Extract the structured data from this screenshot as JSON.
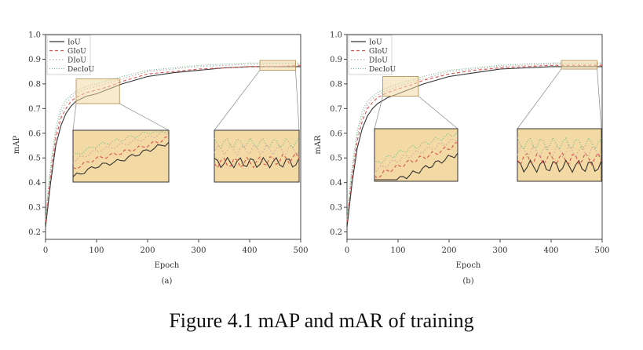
{
  "caption": "Figure 4.1 mAP and mAR of training",
  "colors": {
    "IoU": "#333333",
    "GIoU": "#d9534f",
    "DIoU": "#c8a6a6",
    "DecIoU": "#6dbb85",
    "zoom_fill": "#f3d9a4",
    "zoom_border": "#333333"
  },
  "chart_data": [
    {
      "type": "line",
      "panel_label": "(a)",
      "xlabel": "Epoch",
      "ylabel": "mAP",
      "xlim": [
        0,
        500
      ],
      "ylim": [
        0.17,
        1.0
      ],
      "xticks": [
        0,
        100,
        200,
        300,
        400,
        500
      ],
      "yticks": [
        0.2,
        0.3,
        0.4,
        0.5,
        0.6,
        0.7,
        0.8,
        0.9,
        1.0
      ],
      "grid": false,
      "legend": "top-left",
      "x": [
        0,
        10,
        20,
        30,
        40,
        50,
        60,
        80,
        100,
        125,
        150,
        200,
        250,
        300,
        350,
        400,
        450,
        500
      ],
      "series": [
        {
          "name": "IoU",
          "values": [
            0.22,
            0.4,
            0.55,
            0.63,
            0.68,
            0.71,
            0.73,
            0.75,
            0.76,
            0.78,
            0.8,
            0.83,
            0.845,
            0.855,
            0.865,
            0.87,
            0.87,
            0.87
          ]
        },
        {
          "name": "GIoU",
          "values": [
            0.24,
            0.43,
            0.58,
            0.66,
            0.7,
            0.73,
            0.745,
            0.765,
            0.775,
            0.79,
            0.81,
            0.84,
            0.85,
            0.86,
            0.865,
            0.87,
            0.87,
            0.875
          ]
        },
        {
          "name": "DIoU",
          "values": [
            0.25,
            0.45,
            0.6,
            0.68,
            0.72,
            0.745,
            0.76,
            0.78,
            0.79,
            0.805,
            0.82,
            0.85,
            0.86,
            0.87,
            0.875,
            0.88,
            0.88,
            0.88
          ]
        },
        {
          "name": "DecIoU",
          "values": [
            0.26,
            0.47,
            0.62,
            0.7,
            0.735,
            0.755,
            0.77,
            0.79,
            0.8,
            0.815,
            0.83,
            0.855,
            0.865,
            0.875,
            0.88,
            0.885,
            0.885,
            0.885
          ]
        }
      ],
      "zoom_boxes": [
        {
          "x": [
            60,
            145
          ],
          "y": [
            0.72,
            0.82
          ]
        },
        {
          "x": [
            420,
            490
          ],
          "y": [
            0.855,
            0.895
          ]
        }
      ]
    },
    {
      "type": "line",
      "panel_label": "(b)",
      "xlabel": "Epoch",
      "ylabel": "mAR",
      "xlim": [
        0,
        500
      ],
      "ylim": [
        0.17,
        1.0
      ],
      "xticks": [
        0,
        100,
        200,
        300,
        400,
        500
      ],
      "yticks": [
        0.2,
        0.3,
        0.4,
        0.5,
        0.6,
        0.7,
        0.8,
        0.9,
        1.0
      ],
      "grid": false,
      "legend": "top-left",
      "x": [
        0,
        10,
        20,
        30,
        40,
        50,
        60,
        80,
        100,
        125,
        150,
        200,
        250,
        300,
        350,
        400,
        450,
        500
      ],
      "series": [
        {
          "name": "IoU",
          "values": [
            0.22,
            0.4,
            0.54,
            0.62,
            0.67,
            0.7,
            0.72,
            0.745,
            0.76,
            0.78,
            0.8,
            0.83,
            0.845,
            0.86,
            0.865,
            0.87,
            0.87,
            0.87
          ]
        },
        {
          "name": "GIoU",
          "values": [
            0.24,
            0.43,
            0.57,
            0.65,
            0.7,
            0.725,
            0.745,
            0.765,
            0.78,
            0.795,
            0.815,
            0.84,
            0.855,
            0.865,
            0.87,
            0.875,
            0.875,
            0.875
          ]
        },
        {
          "name": "DIoU",
          "values": [
            0.25,
            0.45,
            0.59,
            0.67,
            0.715,
            0.74,
            0.755,
            0.775,
            0.79,
            0.805,
            0.82,
            0.85,
            0.86,
            0.87,
            0.875,
            0.88,
            0.88,
            0.88
          ]
        },
        {
          "name": "DecIoU",
          "values": [
            0.26,
            0.47,
            0.61,
            0.69,
            0.73,
            0.75,
            0.765,
            0.785,
            0.8,
            0.815,
            0.83,
            0.855,
            0.865,
            0.875,
            0.88,
            0.885,
            0.885,
            0.885
          ]
        }
      ],
      "zoom_boxes": [
        {
          "x": [
            70,
            140
          ],
          "y": [
            0.75,
            0.83
          ]
        },
        {
          "x": [
            420,
            490
          ],
          "y": [
            0.86,
            0.895
          ]
        }
      ]
    }
  ]
}
